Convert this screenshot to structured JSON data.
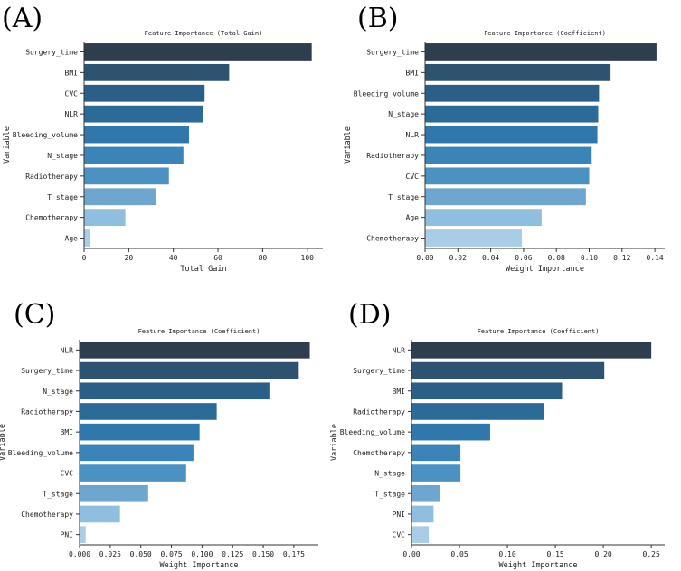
{
  "chart_data": [
    {
      "type": "bar",
      "orientation": "horizontal",
      "panel_label": "(A)",
      "title": "Feature Importance (Total Gain)",
      "xlabel": "Total Gain",
      "ylabel": "Variable",
      "categories": [
        "Surgery_time",
        "BMI",
        "CVC",
        "NLR",
        "Bleeding_volume",
        "N_stage",
        "Radiotherapy",
        "T_stage",
        "Chemotherapy",
        "Age"
      ],
      "values": [
        102,
        65,
        54,
        53.5,
        47,
        44.5,
        38,
        32,
        18.5,
        2.5
      ],
      "xlim": [
        0,
        107
      ],
      "xticks": [
        0,
        20,
        40,
        60,
        80,
        100
      ],
      "xtick_labels": [
        "0",
        "20",
        "40",
        "60",
        "80",
        "100"
      ],
      "colors": [
        "#2e3e4e",
        "#2d5370",
        "#2c5f88",
        "#2c6a98",
        "#3077ab",
        "#3b84b7",
        "#4b92c2",
        "#6fa6cf",
        "#90bede",
        "#a9cde6"
      ]
    },
    {
      "type": "bar",
      "orientation": "horizontal",
      "panel_label": "(B)",
      "title": "Feature Importance (Coefficient)",
      "xlabel": "Weight Importance",
      "ylabel": "Variable",
      "categories": [
        "Surgery_time",
        "BMI",
        "Bleeding_volume",
        "N_stage",
        "NLR",
        "Radiotherapy",
        "CVC",
        "T_stage",
        "Age",
        "Chemotherapy"
      ],
      "values": [
        0.141,
        0.113,
        0.106,
        0.1055,
        0.105,
        0.1015,
        0.1,
        0.098,
        0.071,
        0.059
      ],
      "xlim": [
        0,
        0.146
      ],
      "xticks": [
        0,
        0.02,
        0.04,
        0.06,
        0.08,
        0.1,
        0.12,
        0.14
      ],
      "xtick_labels": [
        "0.00",
        "0.02",
        "0.04",
        "0.06",
        "0.08",
        "0.10",
        "0.12",
        "0.14"
      ],
      "colors": [
        "#2e3e4e",
        "#2d5370",
        "#2c5f88",
        "#2c6a98",
        "#3077ab",
        "#3b84b7",
        "#4b92c2",
        "#6fa6cf",
        "#90bede",
        "#a9cde6"
      ]
    },
    {
      "type": "bar",
      "orientation": "horizontal",
      "panel_label": "(C)",
      "title": "Feature Importance (Coefficient)",
      "xlabel": "Weight Importance",
      "ylabel": "Variable",
      "categories": [
        "NLR",
        "Surgery_time",
        "N_stage",
        "Radiotherapy",
        "BMI",
        "Bleeding_volume",
        "CVC",
        "T_stage",
        "Chemotherapy",
        "PNI"
      ],
      "values": [
        0.188,
        0.179,
        0.155,
        0.112,
        0.098,
        0.093,
        0.087,
        0.056,
        0.033,
        0.005
      ],
      "xlim": [
        0,
        0.195
      ],
      "xticks": [
        0,
        0.025,
        0.05,
        0.075,
        0.1,
        0.125,
        0.15,
        0.175
      ],
      "xtick_labels": [
        "0.000",
        "0.025",
        "0.050",
        "0.075",
        "0.100",
        "0.125",
        "0.150",
        "0.175"
      ],
      "colors": [
        "#2e3e4e",
        "#2d5370",
        "#2c5f88",
        "#2c6a98",
        "#3077ab",
        "#3b84b7",
        "#4b92c2",
        "#6fa6cf",
        "#90bede",
        "#a9cde6"
      ]
    },
    {
      "type": "bar",
      "orientation": "horizontal",
      "panel_label": "(D)",
      "title": "Feature Importance (Coefficient)",
      "xlabel": "Weight Importance",
      "ylabel": "Variable",
      "categories": [
        "NLR",
        "Surgery_time",
        "BMI",
        "Radiotherapy",
        "Bleeding_volume",
        "Chemotherapy",
        "N_stage",
        "T_stage",
        "PNI",
        "CVC"
      ],
      "values": [
        0.25,
        0.201,
        0.157,
        0.138,
        0.082,
        0.051,
        0.051,
        0.03,
        0.023,
        0.018
      ],
      "xlim": [
        0,
        0.264
      ],
      "xticks": [
        0,
        0.05,
        0.1,
        0.15,
        0.2,
        0.25
      ],
      "xtick_labels": [
        "0.00",
        "0.05",
        "0.10",
        "0.15",
        "0.20",
        "0.25"
      ],
      "colors": [
        "#2e3e4e",
        "#2d5370",
        "#2c5f88",
        "#2c6a98",
        "#3077ab",
        "#3b84b7",
        "#4b92c2",
        "#6fa6cf",
        "#90bede",
        "#a9cde6"
      ]
    }
  ]
}
